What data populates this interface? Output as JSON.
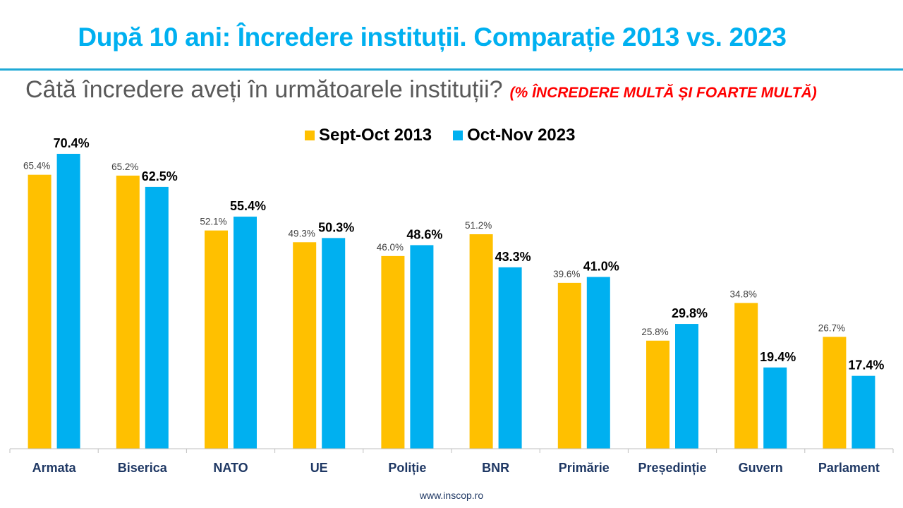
{
  "title": "După 10 ani: Încredere instituții. Comparație 2013 vs. 2023",
  "subtitle": "Câtă încredere aveți în următoarele instituții?",
  "subtitle_note": "(% ÎNCREDERE MULTĂ ȘI FOARTE MULTĂ)",
  "footer": "www.inscop.ro",
  "colors": {
    "title": "#00B0F0",
    "series_2013": "#FFC000",
    "series_2023": "#00B0F0",
    "category_labels": "#1F3864",
    "note": "#FF0000"
  },
  "chart_data": {
    "type": "bar",
    "categories": [
      "Armata",
      "Biserica",
      "NATO",
      "UE",
      "Poliție",
      "BNR",
      "Primărie",
      "Președinție",
      "Guvern",
      "Parlament"
    ],
    "series": [
      {
        "name": "Sept-Oct 2013",
        "color": "#FFC000",
        "values": [
          65.4,
          65.2,
          52.1,
          49.3,
          46.0,
          51.2,
          39.6,
          25.8,
          34.8,
          26.7
        ]
      },
      {
        "name": "Oct-Nov 2023",
        "color": "#00B0F0",
        "values": [
          70.4,
          62.5,
          55.4,
          50.3,
          48.6,
          43.3,
          41.0,
          29.8,
          19.4,
          17.4
        ]
      }
    ],
    "ylim": [
      0,
      70.4
    ],
    "grid": false,
    "legend": "top-center",
    "value_format": "percent, 1 decimal"
  }
}
